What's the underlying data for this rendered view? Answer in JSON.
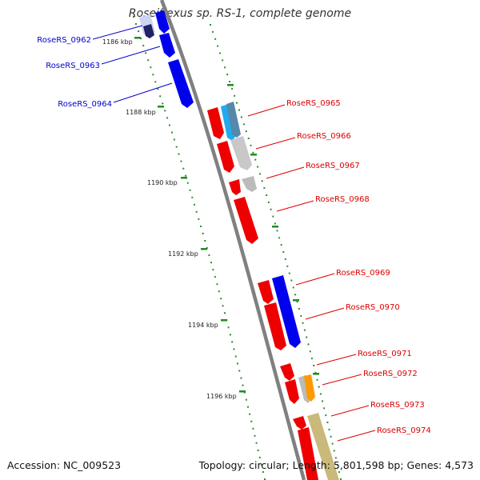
{
  "title": "Roseiflexus sp. RS-1, complete genome",
  "accession": "Accession: NC_009523",
  "stats": "Topology: circular; Length: 5,801,598 bp; Genes: 4,573",
  "ticks": [
    "1186 kbp",
    "1188 kbp",
    "1190 kbp",
    "1192 kbp",
    "1194 kbp",
    "1196 kbp"
  ],
  "genes_left": [
    "RoseRS_0962",
    "RoseRS_0963",
    "RoseRS_0964"
  ],
  "genes_right": [
    "RoseRS_0965",
    "RoseRS_0966",
    "RoseRS_0967",
    "RoseRS_0968",
    "RoseRS_0969",
    "RoseRS_0970",
    "RoseRS_0971",
    "RoseRS_0972",
    "RoseRS_0973",
    "RoseRS_0974"
  ],
  "colors": {
    "backbone": "#808080",
    "forward_label": "#0000cc",
    "reverse_label": "#dd0000",
    "tick_mark": "#228b22",
    "blue_gene": "#0000ee",
    "red_gene": "#ee0000",
    "grey_gene": "#bbbbbb",
    "cyan_gene": "#22aaee",
    "orange_gene": "#ff9900",
    "khaki_gene": "#c9b97a"
  }
}
